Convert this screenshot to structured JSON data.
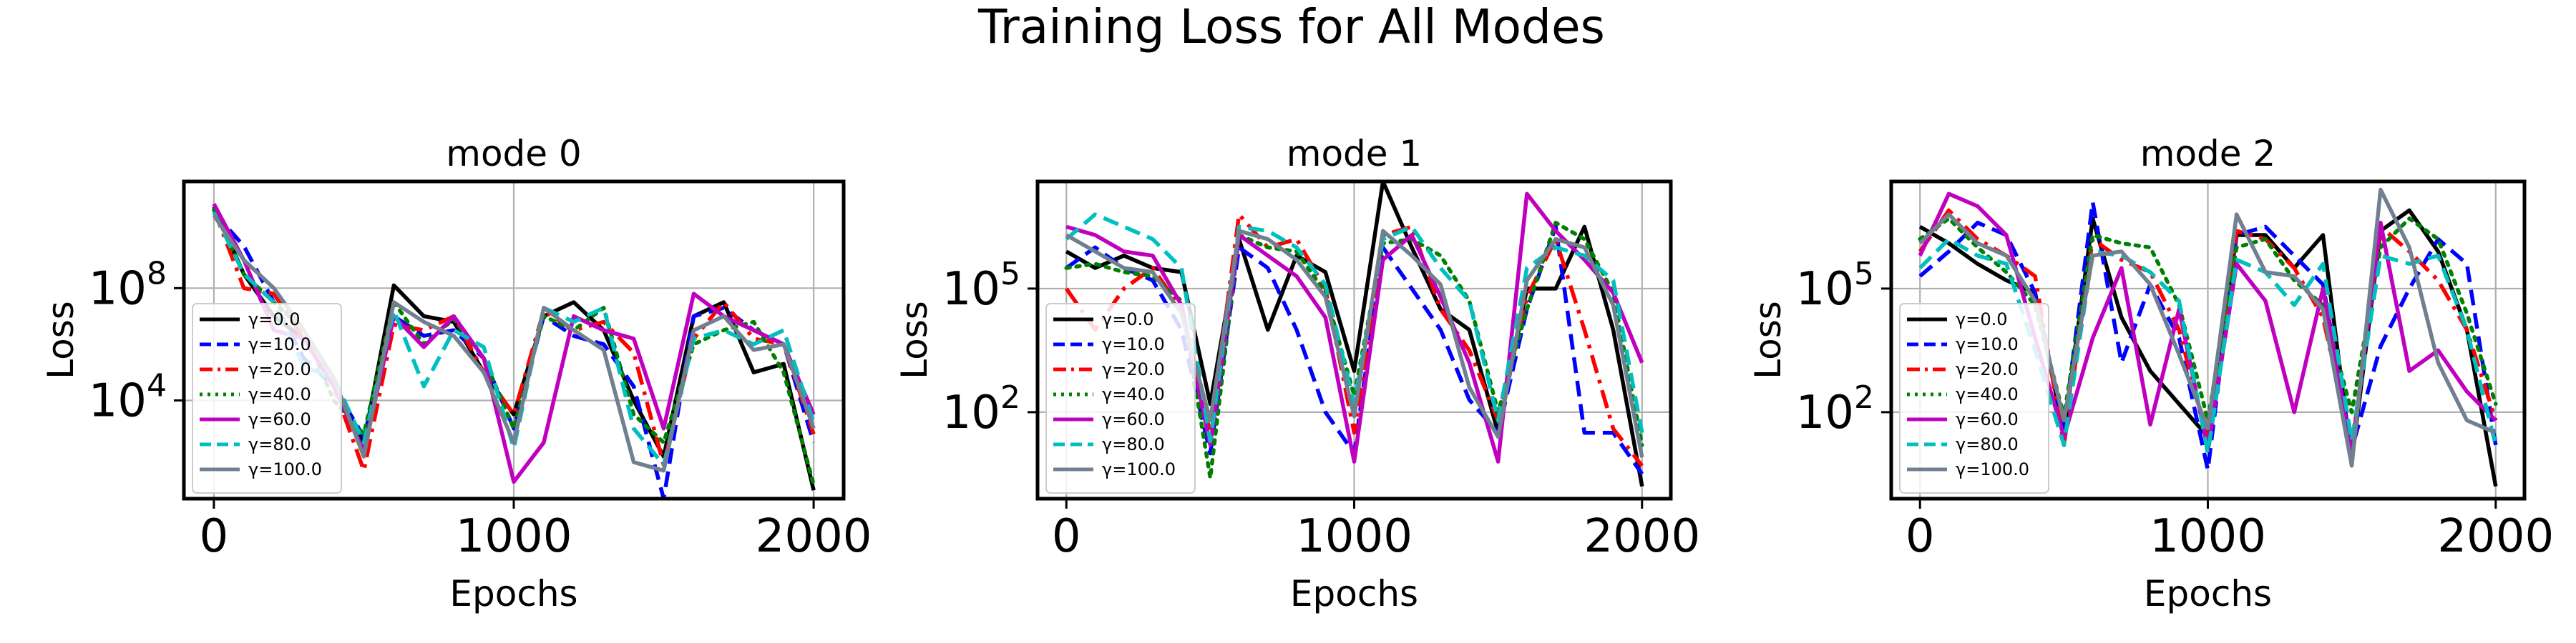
{
  "figure": {
    "suptitle": "Training Loss for All Modes"
  },
  "legend_labels": [
    "γ=0.0",
    "γ=10.0",
    "γ=20.0",
    "γ=40.0",
    "γ=60.0",
    "γ=80.0",
    "γ=100.0"
  ],
  "colors": {
    "γ=0.0": "#000000",
    "γ=10.0": "#0000ff",
    "γ=20.0": "#ff0000",
    "γ=40.0": "#008000",
    "γ=60.0": "#bf00bf",
    "γ=80.0": "#00bfbf",
    "γ=100.0": "#708090"
  },
  "chart_data": [
    {
      "type": "line",
      "title": "mode 0",
      "xlabel": "Epochs",
      "ylabel": "Loss",
      "yscale": "log",
      "x_ticks": [
        0,
        1000,
        2000
      ],
      "y_ticks": [
        "10^8",
        "10^4"
      ],
      "xlim": [
        -100,
        2100
      ],
      "ylim_log10": [
        0.5,
        11.8
      ],
      "grid": true,
      "legend_loc": "lower left",
      "x": [
        0,
        100,
        200,
        300,
        400,
        500,
        600,
        700,
        800,
        900,
        1000,
        1100,
        1200,
        1300,
        1400,
        1500,
        1600,
        1700,
        1800,
        1900,
        2000
      ],
      "series": [
        {
          "name": "γ=0.0",
          "style": "solid",
          "log10_values": [
            10.9,
            8.5,
            7.0,
            6.2,
            4.5,
            2.5,
            8.1,
            7.0,
            6.8,
            5.0,
            3.5,
            7.0,
            7.5,
            6.5,
            4.0,
            2.0,
            7.0,
            7.5,
            5.0,
            5.3,
            0.8
          ]
        },
        {
          "name": "γ=10.0",
          "style": "dashed",
          "log10_values": [
            10.7,
            9.5,
            7.5,
            5.5,
            4.5,
            2.7,
            7.0,
            6.3,
            6.5,
            5.5,
            3.0,
            7.0,
            6.3,
            6.0,
            4.5,
            0.5,
            7.0,
            7.3,
            6.5,
            6.0,
            2.5
          ]
        },
        {
          "name": "γ=20.0",
          "style": "dashdot",
          "log10_values": [
            10.8,
            8.0,
            7.8,
            6.2,
            4.5,
            1.5,
            6.7,
            6.5,
            7.0,
            5.0,
            3.5,
            7.2,
            6.5,
            6.8,
            5.7,
            1.7,
            6.2,
            7.5,
            6.2,
            6.0,
            2.8
          ]
        },
        {
          "name": "γ=40.0",
          "style": "dotted",
          "log10_values": [
            10.8,
            8.5,
            7.5,
            6.5,
            4.0,
            2.8,
            7.5,
            6.0,
            6.9,
            5.5,
            3.0,
            7.0,
            6.5,
            7.3,
            3.5,
            2.5,
            6.0,
            6.5,
            6.8,
            5.0,
            1.0
          ]
        },
        {
          "name": "γ=60.0",
          "style": "solid",
          "log10_values": [
            11.0,
            9.0,
            6.5,
            6.2,
            4.5,
            2.2,
            7.0,
            5.9,
            7.0,
            5.5,
            1.1,
            2.5,
            7.0,
            6.5,
            6.2,
            3.0,
            7.8,
            7.0,
            6.5,
            6.0,
            3.5
          ]
        },
        {
          "name": "γ=80.0",
          "style": "dashed",
          "log10_values": [
            10.7,
            8.5,
            7.5,
            5.2,
            4.8,
            2.5,
            7.2,
            4.5,
            6.5,
            5.9,
            2.3,
            7.3,
            6.8,
            7.3,
            3.0,
            1.7,
            6.2,
            6.5,
            6.0,
            6.5,
            3.2
          ]
        },
        {
          "name": "γ=100.0",
          "style": "solid",
          "log10_values": [
            10.6,
            9.0,
            8.0,
            6.5,
            4.8,
            2.0,
            7.5,
            6.8,
            6.3,
            5.0,
            2.5,
            7.3,
            6.5,
            5.8,
            1.8,
            1.5,
            6.5,
            7.0,
            5.8,
            6.0,
            3.0
          ]
        }
      ]
    },
    {
      "type": "line",
      "title": "mode 1",
      "xlabel": "Epochs",
      "ylabel": "Loss",
      "yscale": "log",
      "x_ticks": [
        0,
        1000,
        2000
      ],
      "y_ticks": [
        "10^5",
        "10^2"
      ],
      "xlim": [
        -100,
        2100
      ],
      "ylim_log10": [
        -0.1,
        7.6
      ],
      "grid": true,
      "legend_loc": "lower left",
      "x": [
        0,
        100,
        200,
        300,
        400,
        500,
        600,
        700,
        800,
        900,
        1000,
        1100,
        1200,
        1300,
        1400,
        1500,
        1600,
        1700,
        1800,
        1900,
        2000
      ],
      "series": [
        {
          "name": "γ=0.0",
          "style": "solid",
          "log10_values": [
            5.9,
            5.5,
            5.8,
            5.5,
            5.4,
            2.2,
            6.2,
            4.0,
            5.8,
            5.4,
            3.0,
            7.6,
            6.0,
            4.5,
            4.0,
            1.5,
            5.0,
            5.0,
            6.5,
            4.0,
            0.2
          ]
        },
        {
          "name": "γ=10.0",
          "style": "dashed",
          "log10_values": [
            5.5,
            6.0,
            5.5,
            5.2,
            4.0,
            1.0,
            6.0,
            5.5,
            4.0,
            2.0,
            1.0,
            6.0,
            5.0,
            4.0,
            2.3,
            1.5,
            4.5,
            6.5,
            1.5,
            1.5,
            0.5
          ]
        },
        {
          "name": "γ=20.0",
          "style": "dashdot",
          "log10_values": [
            5.0,
            4.0,
            5.0,
            5.5,
            4.5,
            1.5,
            6.8,
            6.0,
            6.2,
            5.0,
            1.5,
            6.3,
            6.5,
            4.5,
            3.5,
            1.8,
            4.8,
            6.2,
            4.0,
            1.6,
            0.7
          ]
        },
        {
          "name": "γ=40.0",
          "style": "dotted",
          "log10_values": [
            5.5,
            5.6,
            5.4,
            5.3,
            4.7,
            0.4,
            6.3,
            6.0,
            5.9,
            4.9,
            2.4,
            6.1,
            6.2,
            5.8,
            4.7,
            2.0,
            4.5,
            6.6,
            6.2,
            4.9,
            1.2
          ]
        },
        {
          "name": "γ=60.0",
          "style": "solid",
          "log10_values": [
            6.5,
            6.3,
            5.9,
            5.8,
            4.6,
            1.2,
            6.3,
            5.8,
            5.3,
            4.3,
            0.8,
            5.7,
            6.3,
            4.8,
            3.2,
            0.8,
            7.3,
            6.4,
            5.7,
            4.9,
            3.2
          ]
        },
        {
          "name": "γ=80.0",
          "style": "dashed",
          "log10_values": [
            6.2,
            6.8,
            6.5,
            6.2,
            5.5,
            1.3,
            6.5,
            6.4,
            6.0,
            5.1,
            2.2,
            6.2,
            6.5,
            5.5,
            4.7,
            1.8,
            5.5,
            6.0,
            5.8,
            5.2,
            1.5
          ]
        },
        {
          "name": "γ=100.0",
          "style": "solid",
          "log10_values": [
            6.3,
            5.9,
            5.5,
            5.4,
            4.4,
            1.8,
            6.4,
            6.2,
            5.7,
            4.8,
            1.9,
            6.4,
            5.8,
            5.1,
            2.6,
            1.4,
            5.2,
            6.2,
            6.0,
            4.6,
            0.9
          ]
        }
      ]
    },
    {
      "type": "line",
      "title": "mode 2",
      "xlabel": "Epochs",
      "ylabel": "Loss",
      "yscale": "log",
      "x_ticks": [
        0,
        1000,
        2000
      ],
      "y_ticks": [
        "10^5",
        "10^2"
      ],
      "xlim": [
        -100,
        2100
      ],
      "ylim_log10": [
        -0.1,
        7.6
      ],
      "grid": true,
      "legend_loc": "lower left",
      "x": [
        0,
        100,
        200,
        300,
        400,
        500,
        600,
        700,
        800,
        900,
        1000,
        1100,
        1200,
        1300,
        1400,
        1500,
        1600,
        1700,
        1800,
        1900,
        2000
      ],
      "series": [
        {
          "name": "γ=0.0",
          "style": "solid",
          "log10_values": [
            6.5,
            6.1,
            5.6,
            5.2,
            4.9,
            1.5,
            6.7,
            4.3,
            3.0,
            2.2,
            1.4,
            6.3,
            6.3,
            5.5,
            6.3,
            0.8,
            6.4,
            6.9,
            5.9,
            4.0,
            0.2
          ]
        },
        {
          "name": "γ=10.0",
          "style": "dashed",
          "log10_values": [
            5.3,
            5.9,
            6.6,
            6.3,
            4.9,
            1.6,
            7.1,
            3.2,
            5.1,
            3.8,
            0.6,
            6.3,
            6.5,
            5.8,
            5.1,
            1.1,
            3.6,
            5.0,
            6.2,
            5.6,
            1.2
          ]
        },
        {
          "name": "γ=20.0",
          "style": "dashdot",
          "log10_values": [
            5.9,
            6.9,
            6.2,
            5.8,
            5.3,
            1.2,
            6.2,
            5.7,
            5.4,
            4.0,
            1.3,
            6.4,
            6.2,
            5.5,
            4.3,
            1.1,
            6.5,
            5.9,
            5.2,
            4.0,
            1.8
          ]
        },
        {
          "name": "γ=40.0",
          "style": "dotted",
          "log10_values": [
            6.2,
            6.7,
            6.0,
            5.4,
            4.6,
            1.9,
            6.3,
            6.1,
            6.0,
            4.6,
            1.8,
            6.0,
            6.2,
            5.2,
            4.6,
            2.0,
            6.0,
            6.7,
            6.2,
            4.4,
            2.2
          ]
        },
        {
          "name": "γ=60.0",
          "style": "solid",
          "log10_values": [
            5.8,
            7.3,
            7.0,
            6.3,
            3.8,
            1.4,
            3.8,
            5.5,
            1.7,
            4.5,
            1.1,
            5.6,
            4.7,
            2.0,
            5.0,
            1.0,
            6.6,
            3.0,
            3.5,
            2.5,
            1.8
          ]
        },
        {
          "name": "γ=80.0",
          "style": "dashed",
          "log10_values": [
            5.5,
            6.2,
            5.8,
            5.6,
            3.5,
            1.2,
            5.9,
            5.8,
            5.4,
            4.7,
            1.0,
            5.7,
            5.4,
            4.6,
            5.6,
            1.3,
            5.8,
            5.6,
            5.8,
            4.0,
            1.2
          ]
        },
        {
          "name": "γ=100.0",
          "style": "solid",
          "log10_values": [
            6.1,
            6.8,
            6.1,
            5.8,
            4.7,
            1.8,
            5.8,
            5.9,
            5.1,
            3.4,
            1.6,
            6.8,
            5.4,
            5.3,
            4.5,
            0.7,
            7.4,
            6.0,
            3.2,
            1.8,
            1.5
          ]
        }
      ]
    }
  ]
}
